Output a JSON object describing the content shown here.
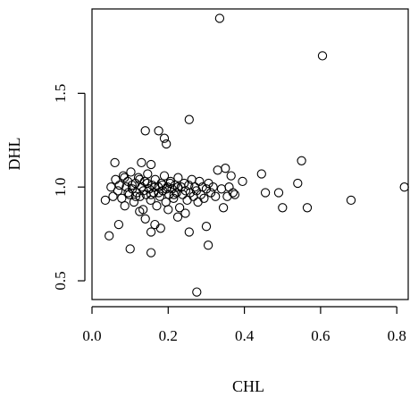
{
  "chart_data": {
    "type": "scatter",
    "xlabel": "CHL",
    "ylabel": "DHL",
    "xlim": [
      0.0,
      0.83
    ],
    "ylim": [
      0.4,
      1.95
    ],
    "x_ticks": [
      0.0,
      0.2,
      0.4,
      0.6,
      0.8
    ],
    "x_tick_labels": [
      "0.0",
      "0.2",
      "0.4",
      "0.6",
      "0.8"
    ],
    "y_ticks": [
      0.5,
      1.0,
      1.5
    ],
    "y_tick_labels": [
      "0.5",
      "1.0",
      "1.5"
    ],
    "grid": false,
    "box": true,
    "marker": "open-circle",
    "points": [
      [
        0.335,
        1.9
      ],
      [
        0.605,
        1.7
      ],
      [
        0.255,
        1.36
      ],
      [
        0.14,
        1.3
      ],
      [
        0.175,
        1.3
      ],
      [
        0.19,
        1.26
      ],
      [
        0.195,
        1.23
      ],
      [
        0.06,
        1.13
      ],
      [
        0.13,
        1.13
      ],
      [
        0.155,
        1.12
      ],
      [
        0.55,
        1.14
      ],
      [
        0.35,
        1.1
      ],
      [
        0.33,
        1.09
      ],
      [
        0.445,
        1.07
      ],
      [
        0.365,
        1.06
      ],
      [
        0.395,
        1.03
      ],
      [
        0.54,
        1.02
      ],
      [
        0.455,
        0.97
      ],
      [
        0.49,
        0.97
      ],
      [
        0.375,
        0.96
      ],
      [
        0.68,
        0.93
      ],
      [
        0.82,
        1.0
      ],
      [
        0.5,
        0.89
      ],
      [
        0.565,
        0.89
      ],
      [
        0.035,
        0.93
      ],
      [
        0.05,
        1.0
      ],
      [
        0.055,
        0.95
      ],
      [
        0.062,
        1.04
      ],
      [
        0.068,
        0.98
      ],
      [
        0.072,
        1.01
      ],
      [
        0.078,
        0.94
      ],
      [
        0.082,
        1.06
      ],
      [
        0.086,
        0.9
      ],
      [
        0.09,
        1.0
      ],
      [
        0.094,
        1.03
      ],
      [
        0.098,
        0.96
      ],
      [
        0.102,
        1.08
      ],
      [
        0.106,
        0.99
      ],
      [
        0.11,
        0.92
      ],
      [
        0.114,
        1.02
      ],
      [
        0.118,
        0.97
      ],
      [
        0.122,
        1.05
      ],
      [
        0.126,
        0.95
      ],
      [
        0.13,
        1.0
      ],
      [
        0.134,
        0.88
      ],
      [
        0.138,
        1.03
      ],
      [
        0.142,
        0.96
      ],
      [
        0.146,
        1.07
      ],
      [
        0.15,
        0.99
      ],
      [
        0.154,
        0.93
      ],
      [
        0.158,
        1.01
      ],
      [
        0.162,
        0.97
      ],
      [
        0.166,
        1.04
      ],
      [
        0.17,
        0.9
      ],
      [
        0.174,
        1.0
      ],
      [
        0.178,
        0.95
      ],
      [
        0.182,
        1.02
      ],
      [
        0.186,
        0.98
      ],
      [
        0.19,
        1.06
      ],
      [
        0.194,
        0.92
      ],
      [
        0.198,
        1.0
      ],
      [
        0.202,
        0.96
      ],
      [
        0.206,
        1.03
      ],
      [
        0.21,
        0.99
      ],
      [
        0.214,
        0.94
      ],
      [
        0.218,
        1.01
      ],
      [
        0.222,
        0.97
      ],
      [
        0.226,
        1.05
      ],
      [
        0.23,
        0.89
      ],
      [
        0.234,
        1.0
      ],
      [
        0.238,
        0.96
      ],
      [
        0.242,
        1.02
      ],
      [
        0.246,
        0.98
      ],
      [
        0.25,
        0.93
      ],
      [
        0.254,
        1.01
      ],
      [
        0.258,
        0.97
      ],
      [
        0.262,
        1.04
      ],
      [
        0.266,
        0.95
      ],
      [
        0.27,
        1.0
      ],
      [
        0.274,
        0.98
      ],
      [
        0.278,
        0.92
      ],
      [
        0.282,
        1.03
      ],
      [
        0.286,
        0.96
      ],
      [
        0.29,
        1.0
      ],
      [
        0.294,
        0.94
      ],
      [
        0.3,
        0.99
      ],
      [
        0.306,
        1.02
      ],
      [
        0.312,
        0.97
      ],
      [
        0.318,
        1.0
      ],
      [
        0.324,
        0.95
      ],
      [
        0.085,
        1.05
      ],
      [
        0.095,
        0.97
      ],
      [
        0.105,
        1.01
      ],
      [
        0.115,
        0.95
      ],
      [
        0.125,
        1.04
      ],
      [
        0.135,
        0.98
      ],
      [
        0.145,
        1.02
      ],
      [
        0.155,
        0.96
      ],
      [
        0.165,
        1.0
      ],
      [
        0.175,
        0.97
      ],
      [
        0.185,
        1.01
      ],
      [
        0.195,
        0.99
      ],
      [
        0.205,
        1.02
      ],
      [
        0.215,
        0.96
      ],
      [
        0.225,
        1.0
      ],
      [
        0.045,
        0.74
      ],
      [
        0.07,
        0.8
      ],
      [
        0.1,
        0.67
      ],
      [
        0.155,
        0.76
      ],
      [
        0.155,
        0.65
      ],
      [
        0.165,
        0.8
      ],
      [
        0.18,
        0.78
      ],
      [
        0.125,
        0.87
      ],
      [
        0.14,
        0.83
      ],
      [
        0.2,
        0.88
      ],
      [
        0.225,
        0.84
      ],
      [
        0.255,
        0.76
      ],
      [
        0.3,
        0.79
      ],
      [
        0.305,
        0.69
      ],
      [
        0.245,
        0.86
      ],
      [
        0.275,
        0.44
      ],
      [
        0.345,
        0.89
      ],
      [
        0.355,
        0.95
      ],
      [
        0.34,
        0.99
      ],
      [
        0.36,
        1.0
      ],
      [
        0.37,
        0.97
      ]
    ]
  }
}
